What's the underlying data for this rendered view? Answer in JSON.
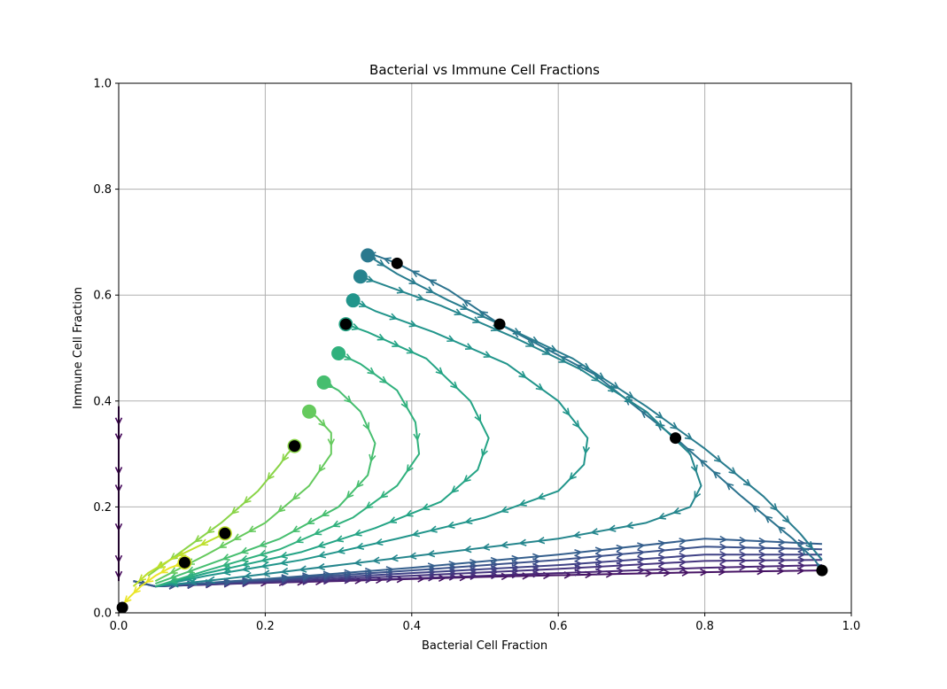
{
  "chart_data": {
    "type": "line",
    "title": "Bacterial vs Immune Cell Fractions",
    "xlabel": "Bacterial Cell Fraction",
    "ylabel": "Immune Cell Fraction",
    "xlim": [
      0,
      1
    ],
    "ylim": [
      0,
      1
    ],
    "xticks": [
      "0.0",
      "0.2",
      "0.4",
      "0.6",
      "0.8",
      "1.0"
    ],
    "yticks": [
      "0.0",
      "0.2",
      "0.4",
      "0.6",
      "0.8",
      "1.0"
    ],
    "grid": true,
    "colormap": "viridis",
    "colormap_stops": [
      "#440154",
      "#482878",
      "#3e4989",
      "#31688e",
      "#26828e",
      "#1f9e89",
      "#35b779",
      "#6ece58",
      "#b5de2b",
      "#fde725"
    ],
    "marker_color": "#000000",
    "series": [
      {
        "cmap": 0.02,
        "points": [
          [
            0.0,
            0.39
          ],
          [
            0.0,
            0.3
          ],
          [
            0.0,
            0.2
          ],
          [
            0.0,
            0.12
          ],
          [
            0.0,
            0.08
          ],
          [
            0.0,
            0.06
          ]
        ]
      },
      {
        "cmap": 0.05,
        "points": [
          [
            0.02,
            0.06
          ],
          [
            0.05,
            0.05
          ],
          [
            0.15,
            0.055
          ],
          [
            0.3,
            0.06
          ],
          [
            0.5,
            0.068
          ],
          [
            0.7,
            0.074
          ],
          [
            0.85,
            0.078
          ],
          [
            0.96,
            0.08
          ]
        ]
      },
      {
        "cmap": 0.1,
        "points": [
          [
            0.02,
            0.06
          ],
          [
            0.05,
            0.05
          ],
          [
            0.2,
            0.057
          ],
          [
            0.4,
            0.065
          ],
          [
            0.6,
            0.075
          ],
          [
            0.8,
            0.085
          ],
          [
            0.96,
            0.09
          ]
        ]
      },
      {
        "cmap": 0.15,
        "points": [
          [
            0.02,
            0.06
          ],
          [
            0.05,
            0.05
          ],
          [
            0.2,
            0.058
          ],
          [
            0.4,
            0.07
          ],
          [
            0.6,
            0.083
          ],
          [
            0.8,
            0.098
          ],
          [
            0.96,
            0.1
          ]
        ]
      },
      {
        "cmap": 0.2,
        "points": [
          [
            0.02,
            0.06
          ],
          [
            0.05,
            0.05
          ],
          [
            0.2,
            0.06
          ],
          [
            0.4,
            0.075
          ],
          [
            0.6,
            0.09
          ],
          [
            0.8,
            0.11
          ],
          [
            0.96,
            0.11
          ]
        ]
      },
      {
        "cmap": 0.25,
        "points": [
          [
            0.02,
            0.06
          ],
          [
            0.05,
            0.05
          ],
          [
            0.2,
            0.062
          ],
          [
            0.4,
            0.08
          ],
          [
            0.6,
            0.1
          ],
          [
            0.8,
            0.125
          ],
          [
            0.96,
            0.12
          ]
        ]
      },
      {
        "cmap": 0.3,
        "points": [
          [
            0.02,
            0.06
          ],
          [
            0.05,
            0.05
          ],
          [
            0.2,
            0.064
          ],
          [
            0.4,
            0.085
          ],
          [
            0.6,
            0.11
          ],
          [
            0.8,
            0.14
          ],
          [
            0.96,
            0.13
          ]
        ]
      },
      {
        "cmap": 0.38,
        "points": [
          [
            0.96,
            0.08
          ],
          [
            0.95,
            0.1
          ],
          [
            0.92,
            0.14
          ],
          [
            0.85,
            0.22
          ],
          [
            0.76,
            0.33
          ],
          [
            0.65,
            0.45
          ],
          [
            0.52,
            0.545
          ],
          [
            0.45,
            0.61
          ],
          [
            0.38,
            0.66
          ],
          [
            0.35,
            0.675
          ],
          [
            0.34,
            0.675
          ]
        ]
      },
      {
        "cmap": 0.42,
        "points": [
          [
            0.34,
            0.675
          ],
          [
            0.38,
            0.64
          ],
          [
            0.45,
            0.59
          ],
          [
            0.52,
            0.545
          ],
          [
            0.62,
            0.48
          ],
          [
            0.72,
            0.39
          ],
          [
            0.8,
            0.31
          ],
          [
            0.88,
            0.22
          ],
          [
            0.93,
            0.15
          ],
          [
            0.96,
            0.1
          ]
        ]
      },
      {
        "cmap": 0.46,
        "points": [
          [
            0.33,
            0.635
          ],
          [
            0.36,
            0.62
          ],
          [
            0.44,
            0.58
          ],
          [
            0.54,
            0.52
          ],
          [
            0.63,
            0.46
          ],
          [
            0.72,
            0.38
          ],
          [
            0.78,
            0.3
          ],
          [
            0.795,
            0.24
          ],
          [
            0.78,
            0.2
          ],
          [
            0.72,
            0.17
          ],
          [
            0.6,
            0.14
          ],
          [
            0.45,
            0.115
          ],
          [
            0.3,
            0.09
          ],
          [
            0.15,
            0.065
          ],
          [
            0.05,
            0.05
          ]
        ]
      },
      {
        "cmap": 0.52,
        "points": [
          [
            0.32,
            0.59
          ],
          [
            0.35,
            0.57
          ],
          [
            0.43,
            0.53
          ],
          [
            0.53,
            0.47
          ],
          [
            0.6,
            0.4
          ],
          [
            0.64,
            0.33
          ],
          [
            0.635,
            0.28
          ],
          [
            0.6,
            0.23
          ],
          [
            0.5,
            0.18
          ],
          [
            0.38,
            0.14
          ],
          [
            0.25,
            0.1
          ],
          [
            0.12,
            0.07
          ],
          [
            0.05,
            0.05
          ]
        ]
      },
      {
        "cmap": 0.58,
        "points": [
          [
            0.31,
            0.545
          ],
          [
            0.34,
            0.53
          ],
          [
            0.42,
            0.48
          ],
          [
            0.48,
            0.4
          ],
          [
            0.505,
            0.33
          ],
          [
            0.49,
            0.27
          ],
          [
            0.44,
            0.21
          ],
          [
            0.35,
            0.16
          ],
          [
            0.25,
            0.115
          ],
          [
            0.12,
            0.075
          ],
          [
            0.05,
            0.05
          ]
        ]
      },
      {
        "cmap": 0.64,
        "points": [
          [
            0.3,
            0.49
          ],
          [
            0.33,
            0.47
          ],
          [
            0.38,
            0.42
          ],
          [
            0.405,
            0.36
          ],
          [
            0.41,
            0.3
          ],
          [
            0.38,
            0.24
          ],
          [
            0.32,
            0.18
          ],
          [
            0.22,
            0.12
          ],
          [
            0.12,
            0.08
          ],
          [
            0.05,
            0.05
          ]
        ]
      },
      {
        "cmap": 0.7,
        "points": [
          [
            0.28,
            0.435
          ],
          [
            0.3,
            0.42
          ],
          [
            0.33,
            0.38
          ],
          [
            0.35,
            0.32
          ],
          [
            0.34,
            0.26
          ],
          [
            0.3,
            0.2
          ],
          [
            0.22,
            0.14
          ],
          [
            0.12,
            0.09
          ],
          [
            0.05,
            0.055
          ]
        ]
      },
      {
        "cmap": 0.76,
        "points": [
          [
            0.26,
            0.38
          ],
          [
            0.27,
            0.37
          ],
          [
            0.29,
            0.34
          ],
          [
            0.29,
            0.3
          ],
          [
            0.26,
            0.24
          ],
          [
            0.2,
            0.17
          ],
          [
            0.12,
            0.11
          ],
          [
            0.05,
            0.06
          ]
        ]
      },
      {
        "cmap": 0.82,
        "points": [
          [
            0.24,
            0.315
          ],
          [
            0.23,
            0.3
          ],
          [
            0.22,
            0.28
          ],
          [
            0.19,
            0.23
          ],
          [
            0.14,
            0.17
          ],
          [
            0.09,
            0.12
          ],
          [
            0.04,
            0.07
          ]
        ]
      },
      {
        "cmap": 0.9,
        "points": [
          [
            0.145,
            0.15
          ],
          [
            0.13,
            0.14
          ],
          [
            0.1,
            0.12
          ],
          [
            0.07,
            0.1
          ],
          [
            0.04,
            0.075
          ],
          [
            0.02,
            0.05
          ]
        ]
      },
      {
        "cmap": 0.97,
        "points": [
          [
            0.09,
            0.095
          ],
          [
            0.07,
            0.085
          ],
          [
            0.05,
            0.07
          ],
          [
            0.03,
            0.05
          ],
          [
            0.015,
            0.03
          ],
          [
            0.005,
            0.015
          ]
        ]
      }
    ],
    "start_markers": [
      {
        "x": 0.96,
        "y": 0.08,
        "cmap": 0.05
      },
      {
        "x": 0.76,
        "y": 0.33,
        "cmap": 0.38
      },
      {
        "x": 0.52,
        "y": 0.545,
        "cmap": 0.38
      },
      {
        "x": 0.38,
        "y": 0.66,
        "cmap": 0.38
      },
      {
        "x": 0.31,
        "y": 0.545,
        "cmap": 0.58
      },
      {
        "x": 0.24,
        "y": 0.315,
        "cmap": 0.82
      },
      {
        "x": 0.145,
        "y": 0.15,
        "cmap": 0.9
      },
      {
        "x": 0.09,
        "y": 0.095,
        "cmap": 0.93
      },
      {
        "x": 0.005,
        "y": 0.01,
        "cmap": 0.97
      }
    ],
    "end_blobs": [
      {
        "x": 0.34,
        "y": 0.675,
        "cmap": 0.4
      },
      {
        "x": 0.33,
        "y": 0.635,
        "cmap": 0.45
      },
      {
        "x": 0.32,
        "y": 0.59,
        "cmap": 0.52
      },
      {
        "x": 0.31,
        "y": 0.545,
        "cmap": 0.58
      },
      {
        "x": 0.3,
        "y": 0.49,
        "cmap": 0.64
      },
      {
        "x": 0.28,
        "y": 0.435,
        "cmap": 0.7
      },
      {
        "x": 0.26,
        "y": 0.38,
        "cmap": 0.76
      },
      {
        "x": 0.24,
        "y": 0.315,
        "cmap": 0.82
      },
      {
        "x": 0.145,
        "y": 0.15,
        "cmap": 0.9
      },
      {
        "x": 0.09,
        "y": 0.095,
        "cmap": 0.93
      }
    ]
  }
}
